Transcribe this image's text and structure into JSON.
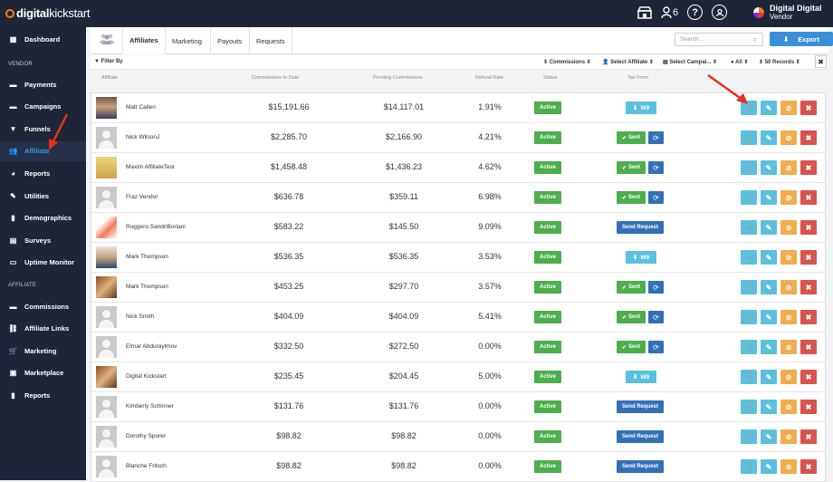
{
  "topbar": {
    "brand_bold": "digital",
    "brand_thin": "kickstart",
    "notification_count": "6",
    "help_label": "?",
    "user_name": "Digital Digital",
    "user_role": "Vendor"
  },
  "sidebar": {
    "top_item": "Dashboard",
    "vendor_heading": "VENDOR",
    "vendor_items": [
      "Payments",
      "Campaigns",
      "Funnels",
      "Affiliate",
      "Reports",
      "Utilities",
      "Demographics",
      "Surveys",
      "Uptime Monitor"
    ],
    "affiliate_heading": "AFFILIATE",
    "affiliate_items": [
      "Commissions",
      "Affiliate Links",
      "Marketing",
      "Marketplace",
      "Reports"
    ],
    "active_item": "Affiliate"
  },
  "tabs": [
    "Affiliates",
    "Marketing",
    "Payouts",
    "Requests"
  ],
  "search": {
    "placeholder": "Search..."
  },
  "export_label": "Export",
  "filters": {
    "filter_by": "Filter By",
    "commissions": "Commissions",
    "select_affiliate": "Select Affiliate",
    "select_campaign": "Select Campai...",
    "all": "All",
    "records": "50 Records"
  },
  "columns": [
    "Affiliate",
    "Commissions to Date",
    "Pending Commissions",
    "Refund Rate",
    "Status",
    "Tax Form"
  ],
  "status_label": "Active",
  "tax_labels": {
    "w9": "W9",
    "sent": "Sent",
    "request": "Send Request"
  },
  "rows": [
    {
      "name": "Matt Callen",
      "commissions": "$15,191.66",
      "pending": "$14,117.01",
      "refund": "1.91%",
      "tax": "w9",
      "avatar": "photo1"
    },
    {
      "name": "Nick WilsonJ",
      "commissions": "$2,285.70",
      "pending": "$2,166.90",
      "refund": "4.21%",
      "tax": "sent",
      "avatar": "default"
    },
    {
      "name": "Maxim AffiliateTest",
      "commissions": "$1,458.48",
      "pending": "$1,436.23",
      "refund": "4.62%",
      "tax": "sent",
      "avatar": "photo2"
    },
    {
      "name": "Fraz Vendor",
      "commissions": "$636.78",
      "pending": "$359.11",
      "refund": "6.98%",
      "tax": "sent",
      "avatar": "default"
    },
    {
      "name": "Ruggero SandriBorlani",
      "commissions": "$583.22",
      "pending": "$145.50",
      "refund": "9.09%",
      "tax": "request",
      "avatar": "photo3"
    },
    {
      "name": "Mark Thompson",
      "commissions": "$536.35",
      "pending": "$536.35",
      "refund": "3.53%",
      "tax": "w9",
      "avatar": "photo4"
    },
    {
      "name": "Mark Thompson",
      "commissions": "$453.25",
      "pending": "$297.70",
      "refund": "3.57%",
      "tax": "sent",
      "avatar": "photo5"
    },
    {
      "name": "Nick Smith",
      "commissions": "$404.09",
      "pending": "$404.09",
      "refund": "5.41%",
      "tax": "sent",
      "avatar": "default"
    },
    {
      "name": "Elmar Abduraylmov",
      "commissions": "$332.50",
      "pending": "$272.50",
      "refund": "0.00%",
      "tax": "sent",
      "avatar": "default"
    },
    {
      "name": "Digital Kickstart",
      "commissions": "$235.45",
      "pending": "$204.45",
      "refund": "5.00%",
      "tax": "w9",
      "avatar": "photo5"
    },
    {
      "name": "Kimberly Schinner",
      "commissions": "$131.76",
      "pending": "$131.76",
      "refund": "0.00%",
      "tax": "request",
      "avatar": "default"
    },
    {
      "name": "Dorothy Sporer",
      "commissions": "$98.82",
      "pending": "$98.82",
      "refund": "0.00%",
      "tax": "request",
      "avatar": "default"
    },
    {
      "name": "Blanche Fritsch",
      "commissions": "$98.82",
      "pending": "$98.82",
      "refund": "0.00%",
      "tax": "request",
      "avatar": "default"
    }
  ],
  "colors": {
    "sidebar": "#1d2537",
    "accent": "#3b8fd9",
    "active": "#4cae4c",
    "danger": "#d9534f",
    "warn": "#f0ad4e",
    "info": "#5bc0de",
    "annotation": "#e5311f"
  }
}
